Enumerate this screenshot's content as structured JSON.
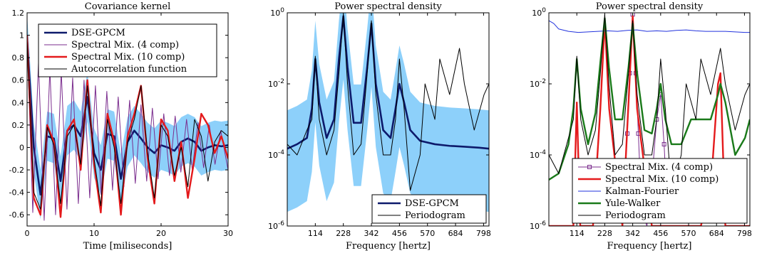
{
  "chart_data": [
    {
      "type": "line",
      "title": "Covariance kernel",
      "xlabel": "Time [miliseconds]",
      "ylabel": "",
      "xlim": [
        0,
        30
      ],
      "ylim": [
        -0.7,
        1.2
      ],
      "xticks": [
        "0",
        "10",
        "20",
        "30"
      ],
      "yticks": [
        "1.2",
        "1",
        "0.8",
        "0.6",
        "0.4",
        "0.2",
        "0",
        "-0.2",
        "-0.4",
        "-0.6"
      ],
      "legend_position": "top-right",
      "series": [
        {
          "name": "DSE-GPCM",
          "color": "#0d1a6b",
          "band_color": "#87cefa",
          "x": [
            0,
            1,
            2,
            3,
            4,
            5,
            6,
            7,
            8,
            9,
            10,
            11,
            12,
            13,
            14,
            15,
            16,
            17,
            18,
            19,
            20,
            21,
            22,
            23,
            24,
            25,
            26,
            27,
            28,
            29,
            30
          ],
          "y": [
            0.97,
            0.0,
            -0.42,
            0.1,
            0.08,
            -0.3,
            0.15,
            0.2,
            0.1,
            0.45,
            -0.05,
            -0.2,
            0.12,
            0.1,
            -0.28,
            0.05,
            0.15,
            0.08,
            0.0,
            -0.05,
            0.02,
            0.0,
            -0.03,
            0.05,
            0.08,
            0.05,
            -0.03,
            0.0,
            0.02,
            0.01,
            0.02
          ]
        },
        {
          "name": "Spectral Mix. (4 comp)",
          "color": "#7b2d8e",
          "x": [
            0,
            0.85,
            1.7,
            2.55,
            3.4,
            4.25,
            5.1,
            5.95,
            6.8,
            7.65,
            8.5,
            9.35,
            10.2,
            11.05,
            11.9,
            12.75,
            13.6,
            14.45,
            15.3,
            16.15,
            17.0,
            17.85,
            18.7,
            19.55,
            20.4,
            21.25,
            22.1,
            22.95,
            23.8,
            24.65,
            25.5,
            26.35,
            27.2,
            28.05,
            28.9,
            30
          ],
          "y": [
            1.0,
            -0.58,
            0.75,
            -0.65,
            0.7,
            -0.6,
            0.68,
            -0.55,
            0.62,
            -0.5,
            0.6,
            -0.45,
            0.55,
            -0.42,
            0.5,
            -0.38,
            0.45,
            -0.35,
            0.42,
            -0.32,
            0.38,
            -0.3,
            0.35,
            -0.28,
            0.3,
            -0.25,
            0.28,
            -0.22,
            0.25,
            -0.2,
            0.22,
            -0.18,
            0.2,
            -0.15,
            0.15,
            -0.2
          ]
        },
        {
          "name": "Spectral Mix. (10 comp)",
          "color": "#e41a1c",
          "x": [
            0,
            1,
            2,
            3,
            4,
            5,
            6,
            7,
            8,
            9,
            10,
            11,
            12,
            13,
            14,
            15,
            16,
            17,
            18,
            19,
            20,
            21,
            22,
            23,
            24,
            25,
            26,
            27,
            28,
            29,
            30
          ],
          "y": [
            1.0,
            -0.45,
            -0.6,
            0.2,
            0.05,
            -0.62,
            0.15,
            0.25,
            -0.2,
            0.6,
            -0.15,
            -0.58,
            0.3,
            0.05,
            -0.6,
            0.1,
            0.3,
            0.55,
            -0.1,
            -0.5,
            0.25,
            0.15,
            -0.3,
            0.05,
            -0.45,
            -0.1,
            0.3,
            0.2,
            -0.05,
            0.1,
            -0.1
          ]
        },
        {
          "name": "Autocorrelation function",
          "color": "#000000",
          "x": [
            0,
            1,
            2,
            3,
            4,
            5,
            6,
            7,
            8,
            9,
            10,
            11,
            12,
            13,
            14,
            15,
            16,
            17,
            18,
            19,
            20,
            21,
            22,
            23,
            24,
            25,
            26,
            27,
            28,
            29,
            30
          ],
          "y": [
            0.95,
            -0.4,
            -0.55,
            0.18,
            0.02,
            -0.5,
            0.1,
            0.2,
            -0.15,
            0.55,
            -0.1,
            -0.52,
            0.25,
            0.0,
            -0.5,
            0.05,
            0.25,
            0.55,
            -0.05,
            -0.45,
            0.2,
            0.1,
            -0.25,
            0.0,
            -0.35,
            0.25,
            0.1,
            -0.3,
            0.05,
            0.15,
            0.1
          ]
        }
      ]
    },
    {
      "type": "line",
      "title": "Power spectral density",
      "xlabel": "Frequency [hertz]",
      "ylabel": "",
      "xlim": [
        0,
        820
      ],
      "ylim": [
        1e-06,
        1
      ],
      "yscale": "log",
      "xticks": [
        "114",
        "228",
        "342",
        "456",
        "570",
        "684",
        "798"
      ],
      "yticks": [
        "10^0",
        "10^-2",
        "10^-4",
        "10^-6"
      ],
      "legend_position": "bottom-right",
      "series": [
        {
          "name": "DSE-GPCM",
          "color": "#0d1a6b",
          "band_color": "#87cefa",
          "x": [
            0,
            40,
            80,
            100,
            114,
            130,
            160,
            190,
            210,
            228,
            245,
            270,
            300,
            325,
            342,
            360,
            390,
            420,
            440,
            456,
            475,
            500,
            540,
            600,
            660,
            720,
            780,
            820
          ],
          "y": [
            0.00015,
            0.0002,
            0.0003,
            0.002,
            0.05,
            0.003,
            0.0003,
            0.001,
            0.05,
            0.8,
            0.03,
            0.0008,
            0.0008,
            0.03,
            0.5,
            0.01,
            0.0005,
            0.0003,
            0.002,
            0.01,
            0.003,
            0.0005,
            0.00025,
            0.0002,
            0.00018,
            0.00017,
            0.00016,
            0.00015
          ]
        },
        {
          "name": "Periodogram",
          "color": "#000000",
          "x": [
            0,
            40,
            80,
            100,
            114,
            130,
            160,
            190,
            210,
            228,
            245,
            270,
            300,
            325,
            342,
            360,
            390,
            420,
            440,
            456,
            475,
            500,
            540,
            560,
            600,
            620,
            660,
            700,
            720,
            760,
            800,
            820
          ],
          "y": [
            0.0002,
            0.0001,
            0.0005,
            0.001,
            0.06,
            0.001,
            0.0001,
            0.0005,
            0.02,
            0.9,
            0.01,
            0.0001,
            0.0002,
            0.02,
            0.6,
            0.005,
            0.0001,
            0.0001,
            0.001,
            0.05,
            0.002,
            1e-05,
            0.0001,
            0.01,
            0.001,
            0.05,
            0.005,
            0.1,
            0.01,
            0.0005,
            0.005,
            0.01
          ]
        }
      ]
    },
    {
      "type": "line",
      "title": "Power spectral density",
      "xlabel": "Frequency [hertz]",
      "ylabel": "",
      "xlim": [
        0,
        820
      ],
      "ylim": [
        1e-06,
        1
      ],
      "yscale": "log",
      "xticks": [
        "114",
        "228",
        "342",
        "456",
        "570",
        "684",
        "798"
      ],
      "yticks": [
        "10^0",
        "10^-2",
        "10^-4",
        "10^-6"
      ],
      "legend_position": "bottom-right",
      "series": [
        {
          "name": "Spectral Mix. (4 comp)",
          "color": "#7b2d8e",
          "x": [
            300,
            310,
            320,
            330,
            342,
            355,
            365,
            375,
            385,
            400,
            420,
            440,
            456,
            470,
            485
          ],
          "y": [
            2e-06,
            2e-05,
            0.0004,
            0.02,
            0.9,
            0.02,
            0.0004,
            1e-05,
            2e-06,
            1e-06,
            2e-05,
            0.001,
            0.005,
            0.0002,
            2e-06
          ]
        },
        {
          "name": "Spectral Mix. (10 comp)",
          "color": "#e41a1c",
          "x": [
            0,
            100,
            114,
            128,
            180,
            210,
            228,
            246,
            300,
            325,
            342,
            360,
            420,
            470,
            560,
            620,
            660,
            690,
            700,
            720,
            760,
            800,
            820
          ],
          "y": [
            1e-06,
            1e-06,
            0.003,
            1e-06,
            1e-06,
            0.002,
            0.6,
            0.002,
            1e-06,
            0.003,
            0.8,
            0.002,
            1e-06,
            1e-06,
            1e-06,
            1e-06,
            1e-05,
            0.01,
            0.02,
            1e-06,
            1e-06,
            1e-06,
            1e-06
          ]
        },
        {
          "name": "Kalman-Fourier",
          "color": "#2233dd",
          "x": [
            0,
            20,
            40,
            80,
            120,
            160,
            200,
            240,
            280,
            320,
            360,
            400,
            440,
            480,
            520,
            560,
            600,
            640,
            680,
            720,
            760,
            800,
            820
          ],
          "y": [
            0.6,
            0.5,
            0.35,
            0.3,
            0.28,
            0.29,
            0.3,
            0.31,
            0.3,
            0.32,
            0.33,
            0.3,
            0.31,
            0.3,
            0.32,
            0.33,
            0.31,
            0.3,
            0.3,
            0.3,
            0.29,
            0.28,
            0.28
          ]
        },
        {
          "name": "Yule-Walker",
          "color": "#1a7a1a",
          "x": [
            0,
            40,
            80,
            100,
            114,
            130,
            160,
            190,
            210,
            228,
            245,
            270,
            300,
            325,
            342,
            360,
            390,
            420,
            440,
            456,
            475,
            500,
            540,
            580,
            620,
            660,
            690,
            700,
            720,
            760,
            800,
            820
          ],
          "y": [
            2e-05,
            3e-05,
            0.0002,
            0.002,
            0.05,
            0.002,
            0.0002,
            0.0015,
            0.04,
            0.7,
            0.03,
            0.001,
            0.001,
            0.03,
            0.5,
            0.02,
            0.0005,
            0.0004,
            0.002,
            0.01,
            0.001,
            0.0002,
            0.0002,
            0.001,
            0.001,
            0.001,
            0.005,
            0.01,
            0.003,
            0.0001,
            0.0003,
            0.001
          ]
        },
        {
          "name": "Periodogram",
          "color": "#000000",
          "x": [
            0,
            40,
            80,
            100,
            114,
            130,
            160,
            190,
            210,
            228,
            245,
            270,
            300,
            325,
            342,
            360,
            390,
            420,
            440,
            456,
            475,
            500,
            540,
            560,
            600,
            620,
            660,
            700,
            720,
            760,
            800,
            820
          ],
          "y": [
            0.0001,
            3e-05,
            0.0003,
            0.001,
            0.06,
            0.001,
            0.0001,
            0.0005,
            0.02,
            0.9,
            0.01,
            0.0001,
            0.0002,
            0.02,
            0.6,
            0.005,
            0.0001,
            0.0001,
            0.001,
            0.05,
            0.002,
            1e-05,
            0.0001,
            0.01,
            0.001,
            0.05,
            0.005,
            0.1,
            0.01,
            0.0005,
            0.005,
            0.01
          ]
        }
      ]
    }
  ]
}
